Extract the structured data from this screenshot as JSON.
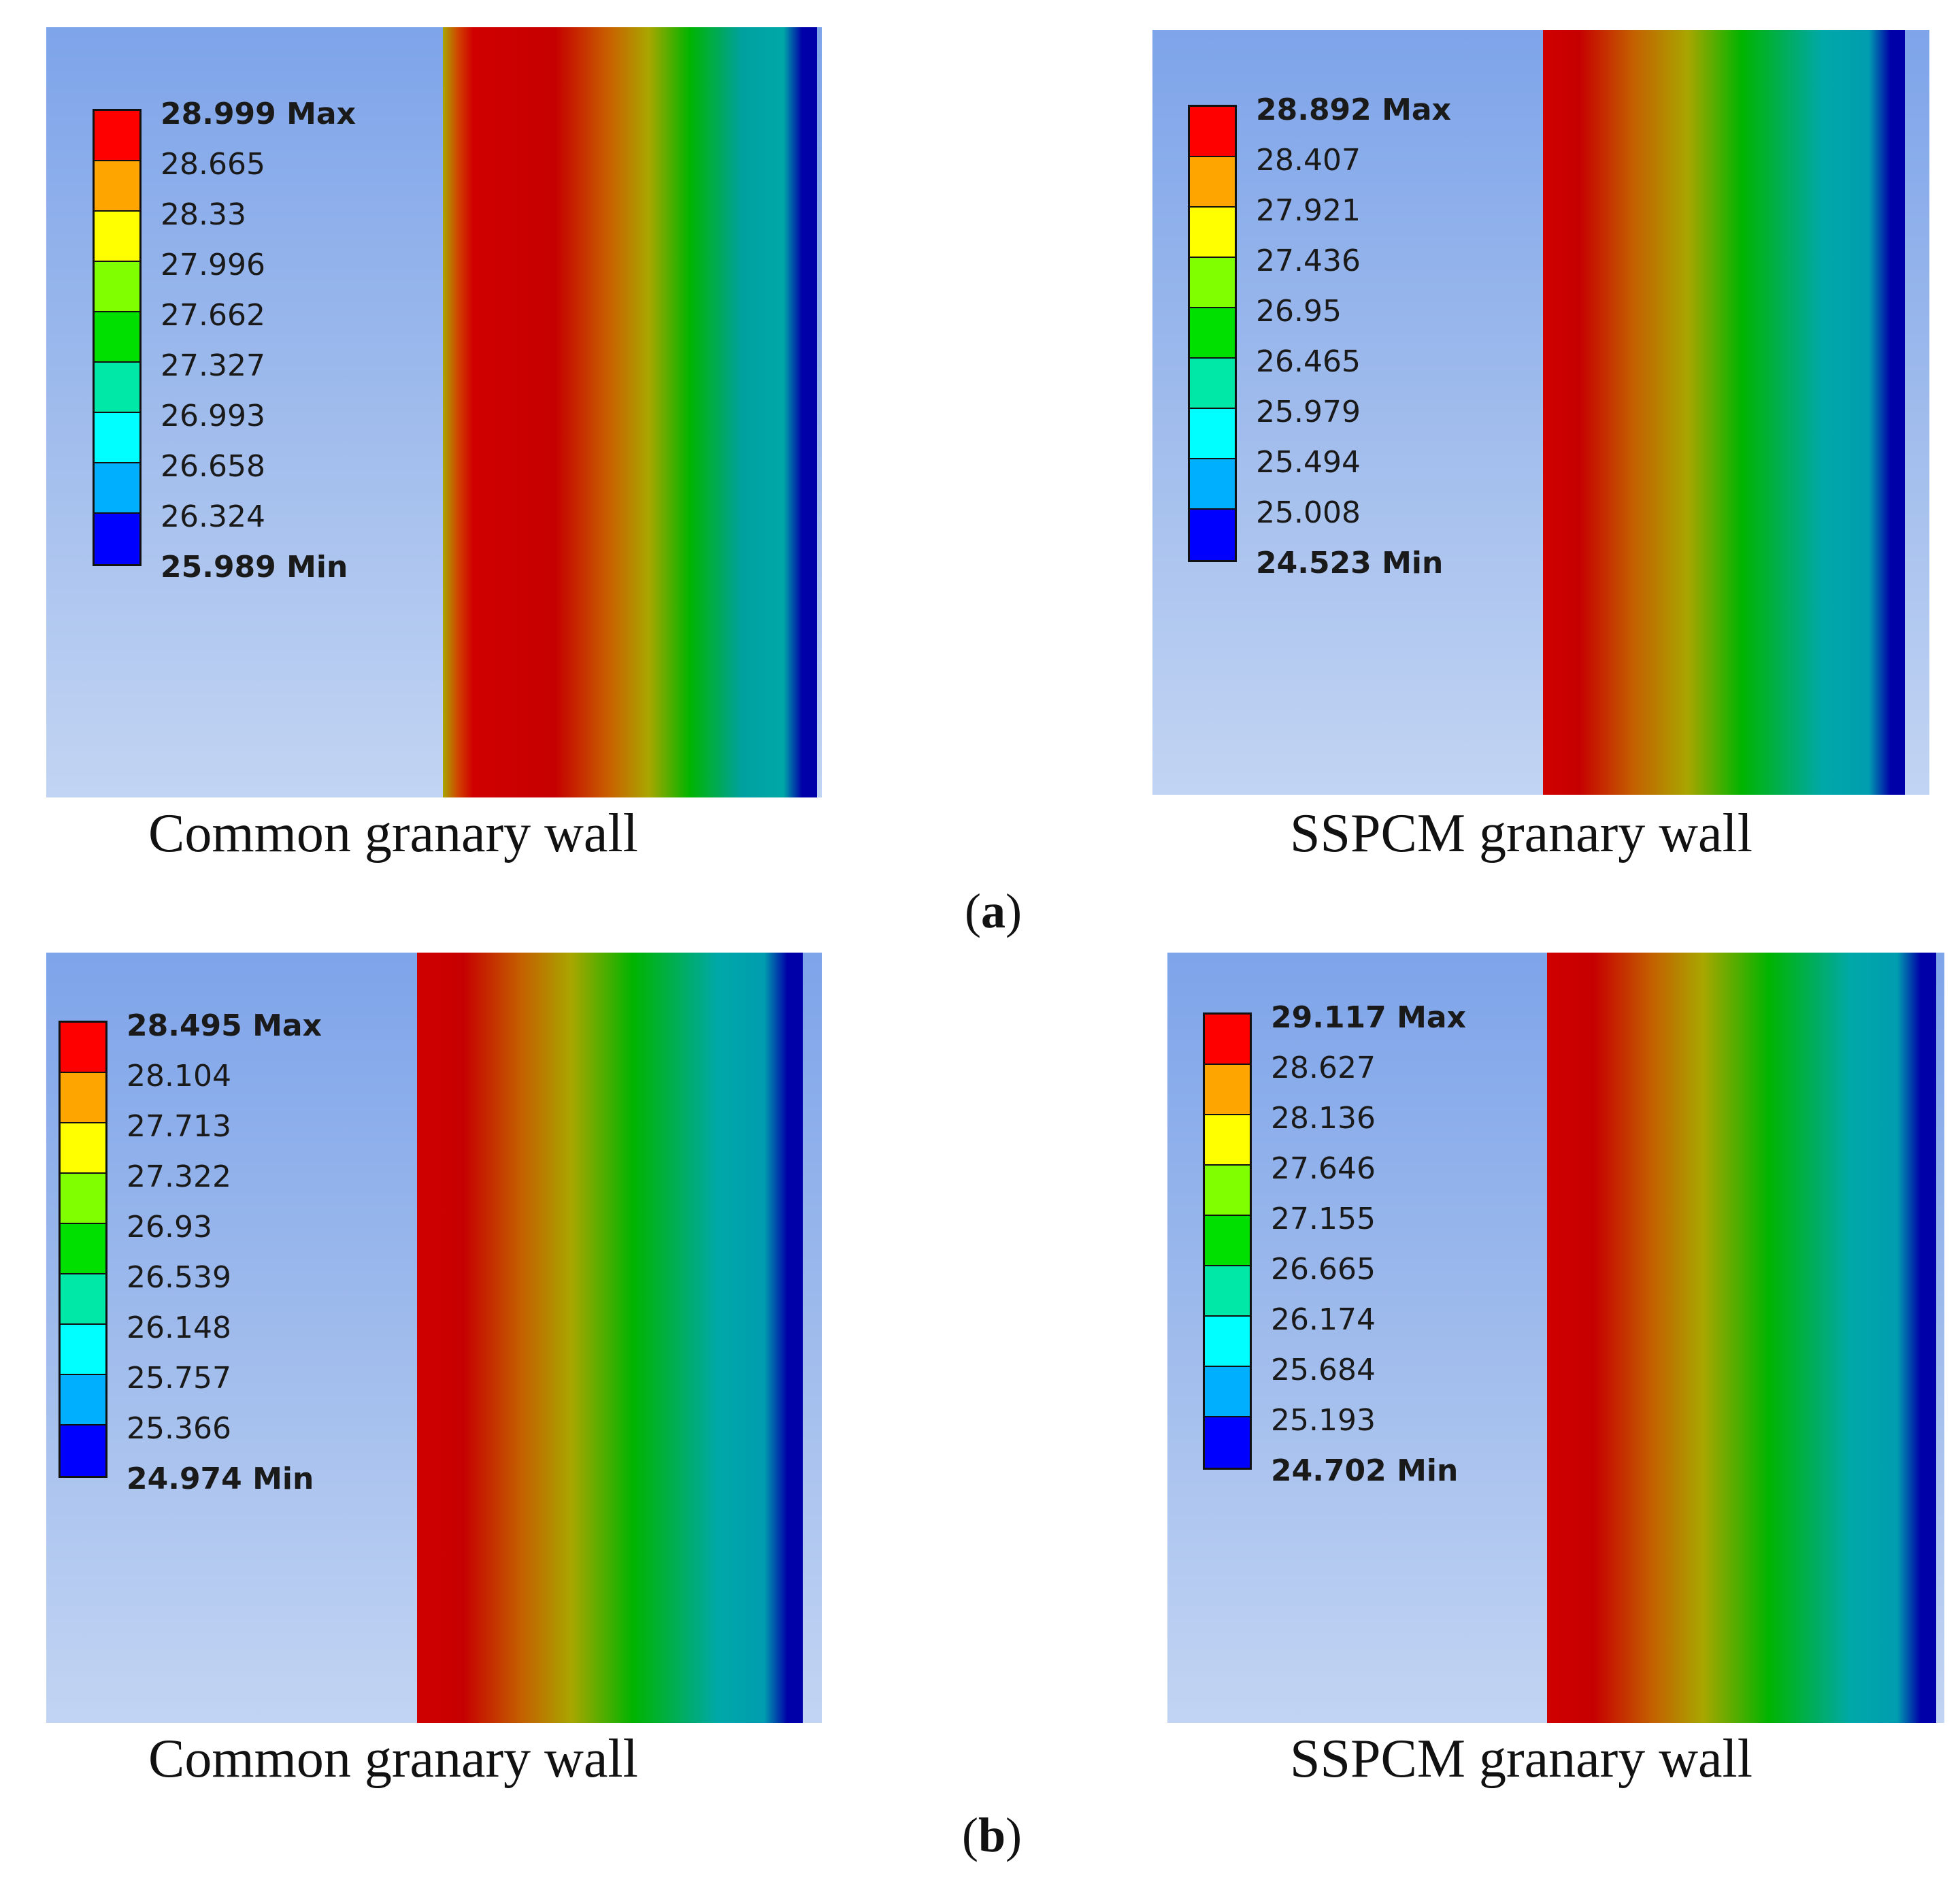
{
  "figure": {
    "colors": {
      "band_0": "#ff0000",
      "band_1": "#ffa500",
      "band_2": "#ffff00",
      "band_3": "#80ff00",
      "band_4": "#00e000",
      "band_5": "#00e8a8",
      "band_6": "#00ffff",
      "band_7": "#00b0ff",
      "band_8": "#0000ff"
    },
    "panels": [
      {
        "id": "a-common",
        "caption": "Common granary wall",
        "legend": {
          "max": "28.999 Max",
          "ticks": [
            "28.665",
            "28.33",
            "27.996",
            "27.662",
            "27.327",
            "26.993",
            "26.658",
            "26.324"
          ],
          "min": "25.989 Min"
        }
      },
      {
        "id": "a-sspcm",
        "caption": "SSPCM granary wall",
        "legend": {
          "max": "28.892 Max",
          "ticks": [
            "28.407",
            "27.921",
            "27.436",
            "26.95",
            "26.465",
            "25.979",
            "25.494",
            "25.008"
          ],
          "min": "24.523 Min"
        }
      },
      {
        "id": "b-common",
        "caption": "Common granary wall",
        "legend": {
          "max": "28.495 Max",
          "ticks": [
            "28.104",
            "27.713",
            "27.322",
            "26.93",
            "26.539",
            "26.148",
            "25.757",
            "25.366"
          ],
          "min": "24.974 Min"
        }
      },
      {
        "id": "b-sspcm",
        "caption": "SSPCM granary wall",
        "legend": {
          "max": "29.117 Max",
          "ticks": [
            "28.627",
            "28.136",
            "27.646",
            "27.155",
            "26.665",
            "26.174",
            "25.684",
            "25.193"
          ],
          "min": "24.702 Min"
        }
      }
    ],
    "subfig_labels": {
      "a": {
        "open": "(",
        "letter": "a",
        "close": ")"
      },
      "b": {
        "open": "(",
        "letter": "b",
        "close": ")"
      }
    }
  }
}
